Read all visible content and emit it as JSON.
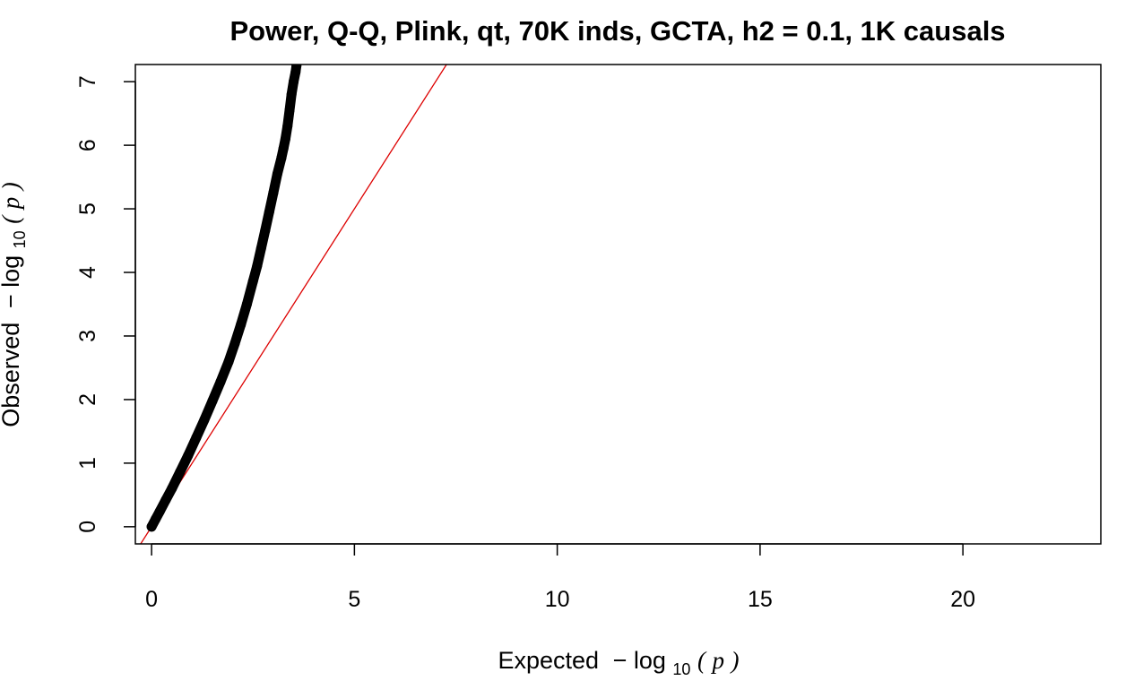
{
  "chart_data": {
    "type": "scatter",
    "title": "Power, Q-Q, Plink, qt, 70K inds, GCTA, h2 = 0.1, 1K causals",
    "xlabel": {
      "prefix": "Expected",
      "minus": "−",
      "log": "log",
      "base": "10",
      "open": "(",
      "var": "p",
      "close": ")"
    },
    "ylabel": {
      "prefix": "Observed",
      "minus": "−",
      "log": "log",
      "base": "10",
      "open": "(",
      "var": "p",
      "close": ")"
    },
    "xlim": [
      -0.4,
      23.4
    ],
    "ylim": [
      -0.27,
      7.27
    ],
    "x_ticks": [
      0,
      5,
      10,
      15,
      20
    ],
    "x_tick_labels": [
      "0",
      "5",
      "10",
      "15",
      "20"
    ],
    "y_ticks": [
      0,
      1,
      2,
      3,
      4,
      5,
      6,
      7
    ],
    "y_tick_labels": [
      "0",
      "1",
      "2",
      "3",
      "4",
      "5",
      "6",
      "7"
    ],
    "grid": false,
    "series": [
      {
        "points_x": [
          0,
          0.1,
          0.2,
          0.35,
          0.5,
          0.7,
          0.9,
          1.1,
          1.3,
          1.5,
          1.7,
          1.9,
          2.05,
          2.2,
          2.35,
          2.5,
          2.6,
          2.7,
          2.8,
          2.9,
          3.0,
          3.1,
          3.2,
          3.25,
          3.3,
          3.35,
          3.4,
          3.45,
          3.5,
          3.55,
          3.57
        ],
        "points_y": [
          0,
          0.12,
          0.24,
          0.42,
          0.6,
          0.86,
          1.12,
          1.4,
          1.68,
          1.98,
          2.28,
          2.6,
          2.88,
          3.18,
          3.5,
          3.86,
          4.1,
          4.38,
          4.66,
          4.95,
          5.25,
          5.55,
          5.8,
          5.95,
          6.1,
          6.3,
          6.55,
          6.8,
          7.0,
          7.15,
          7.25
        ],
        "color": "#000000"
      }
    ],
    "reference_line": {
      "slope": 1,
      "intercept": 0,
      "color": "#dd0000"
    },
    "frame_color": "#000000"
  }
}
